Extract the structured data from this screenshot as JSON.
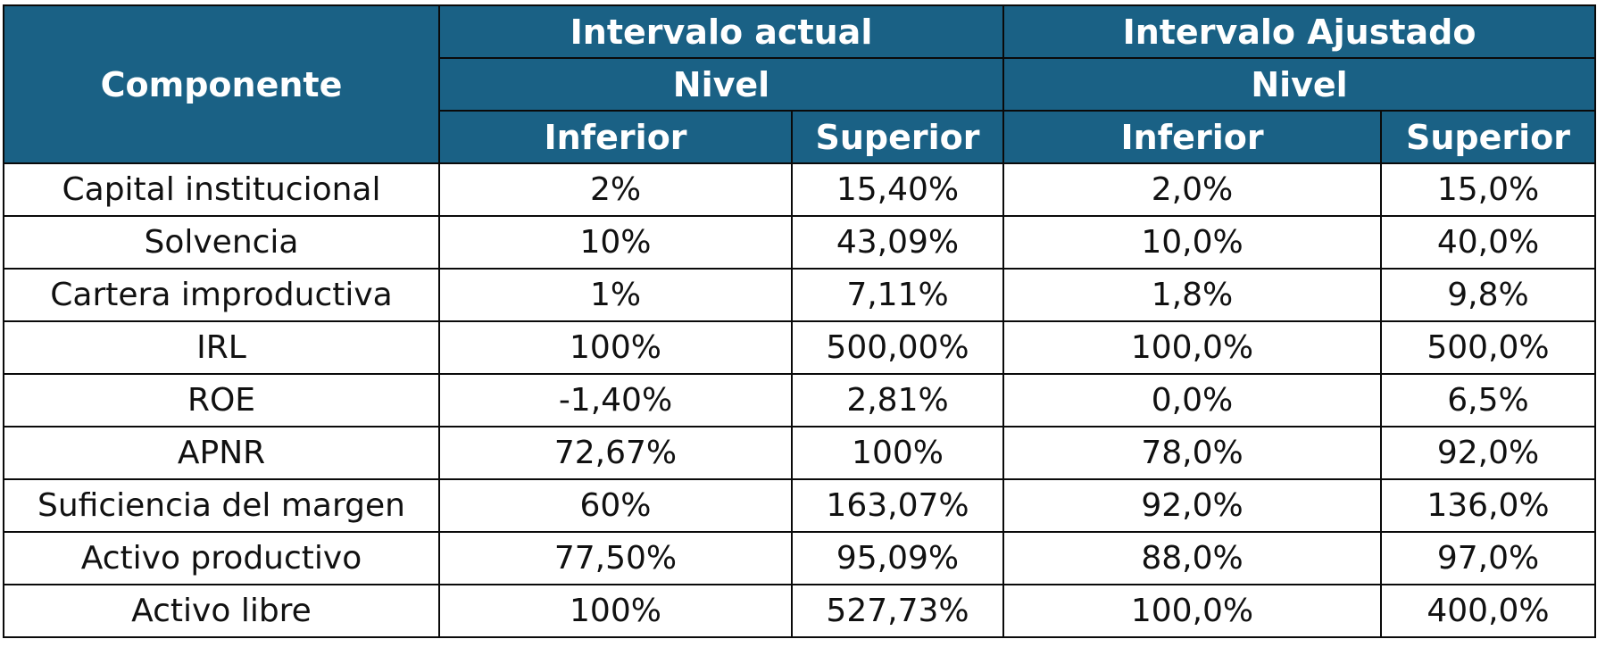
{
  "header": {
    "componente": "Componente",
    "group_actual": "Intervalo actual",
    "group_ajustado": "Intervalo Ajustado",
    "nivel_actual": "Nivel",
    "nivel_ajustado": "Nivel",
    "inferior_actual": "Inferior",
    "superior_actual": "Superior",
    "inferior_ajustado": "Inferior",
    "superior_ajustado": "Superior"
  },
  "rows": [
    {
      "componente": "Capital institucional",
      "act_inf": "2%",
      "act_sup": "15,40%",
      "aj_inf": "2,0%",
      "aj_sup": "15,0%"
    },
    {
      "componente": "Solvencia",
      "act_inf": "10%",
      "act_sup": "43,09%",
      "aj_inf": "10,0%",
      "aj_sup": "40,0%"
    },
    {
      "componente": "Cartera improductiva",
      "act_inf": "1%",
      "act_sup": "7,11%",
      "aj_inf": "1,8%",
      "aj_sup": "9,8%"
    },
    {
      "componente": "IRL",
      "act_inf": "100%",
      "act_sup": "500,00%",
      "aj_inf": "100,0%",
      "aj_sup": "500,0%"
    },
    {
      "componente": "ROE",
      "act_inf": "-1,40%",
      "act_sup": "2,81%",
      "aj_inf": "0,0%",
      "aj_sup": "6,5%"
    },
    {
      "componente": "APNR",
      "act_inf": "72,67%",
      "act_sup": "100%",
      "aj_inf": "78,0%",
      "aj_sup": "92,0%"
    },
    {
      "componente": "Suficiencia del margen",
      "act_inf": "60%",
      "act_sup": "163,07%",
      "aj_inf": "92,0%",
      "aj_sup": "136,0%"
    },
    {
      "componente": "Activo productivo",
      "act_inf": "77,50%",
      "act_sup": "95,09%",
      "aj_inf": "88,0%",
      "aj_sup": "97,0%"
    },
    {
      "componente": "Activo libre",
      "act_inf": "100%",
      "act_sup": "527,73%",
      "aj_inf": "100,0%",
      "aj_sup": "400,0%"
    }
  ],
  "colors": {
    "header_bg": "#1a6185",
    "header_text": "#ffffff",
    "border": "#0a0a0a"
  }
}
